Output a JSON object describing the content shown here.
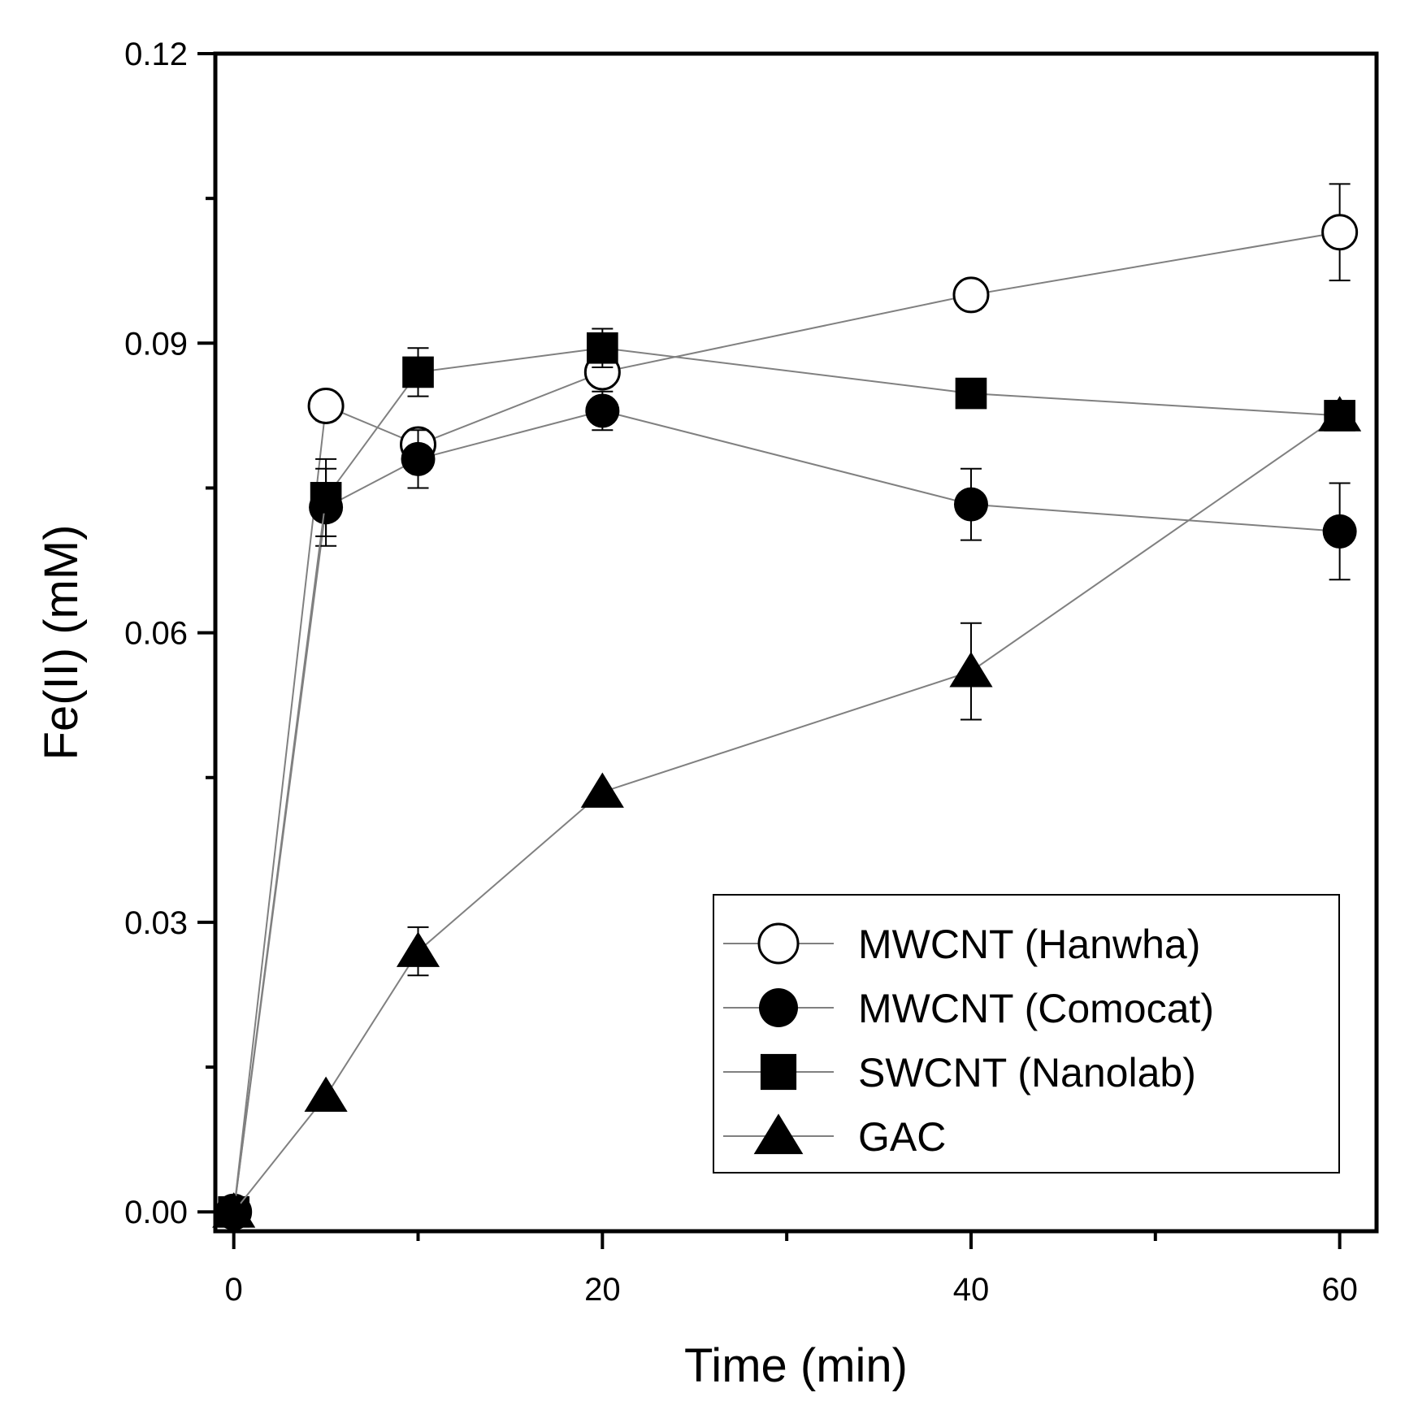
{
  "chart_data": {
    "type": "scatter",
    "xlabel": "Time (min)",
    "ylabel": "Fe(II) (mM)",
    "xlim": [
      -1,
      62
    ],
    "ylim": [
      -0.002,
      0.12
    ],
    "x_ticks": [
      0,
      20,
      40,
      60
    ],
    "x_tick_labels": [
      "0",
      "20",
      "40",
      "60"
    ],
    "x_minor_ticks": [
      10,
      30,
      50
    ],
    "y_ticks": [
      0,
      0.03,
      0.06,
      0.09,
      0.12
    ],
    "y_tick_labels": [
      "0.00",
      "0.03",
      "0.06",
      "0.09",
      "0.12"
    ],
    "y_minor_ticks": [
      0.015,
      0.045,
      0.075,
      0.105
    ],
    "grid": false,
    "legend_position": "bottom-right",
    "series": [
      {
        "name": "MWCNT (Hanwha)",
        "marker": "open-circle",
        "x": [
          0,
          5,
          10,
          20,
          40,
          60
        ],
        "y": [
          0,
          0.0835,
          0.0795,
          0.087,
          0.095,
          0.1015
        ],
        "err": [
          0,
          0.0015,
          0.0015,
          0.0015,
          0.0015,
          0.005
        ]
      },
      {
        "name": "MWCNT (Comocat)",
        "marker": "filled-circle",
        "x": [
          0,
          5,
          10,
          20,
          40,
          60
        ],
        "y": [
          0,
          0.073,
          0.078,
          0.083,
          0.0733,
          0.0705
        ],
        "err": [
          0,
          0.004,
          0.003,
          0.002,
          0.0037,
          0.005
        ]
      },
      {
        "name": "SWCNT (Nanolab)",
        "marker": "filled-square",
        "x": [
          0,
          5,
          10,
          20,
          40,
          60
        ],
        "y": [
          0,
          0.074,
          0.087,
          0.0895,
          0.0848,
          0.0825
        ],
        "err": [
          0,
          0.004,
          0.0025,
          0.002,
          0.0005,
          0.0005
        ]
      },
      {
        "name": "GAC",
        "marker": "filled-triangle",
        "x": [
          0,
          5,
          10,
          20,
          40,
          60
        ],
        "y": [
          0,
          0.012,
          0.027,
          0.0435,
          0.056,
          0.0825
        ],
        "err": [
          0,
          0,
          0.0025,
          0,
          0.005,
          0
        ]
      }
    ],
    "colors": {
      "line": "#808080",
      "marker": "#000000",
      "axis": "#000000",
      "background": "#ffffff"
    }
  }
}
